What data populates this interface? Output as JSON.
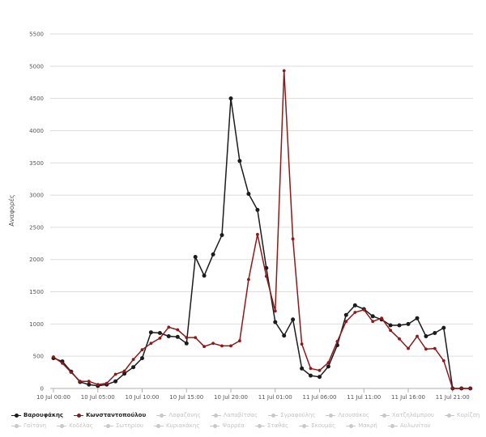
{
  "chart_data": {
    "type": "line",
    "ylabel": "Αναφορές",
    "y_ticks": [
      "0",
      "500",
      "1000",
      "1500",
      "2000",
      "2500",
      "3000",
      "3500",
      "4000",
      "4500",
      "5000",
      "5500"
    ],
    "ylim": [
      0,
      5500
    ],
    "x_ticks": [
      "10 Jul 00:00",
      "10 Jul 05:00",
      "10 Jul 10:00",
      "10 Jul 15:00",
      "10 Jul 20:00",
      "11 Jul 01:00",
      "11 Jul 06:00",
      "11 Jul 11:00",
      "11 Jul 16:00",
      "11 Jul 21:00"
    ],
    "x_hours_from_10_Jul_00_00": [
      0,
      5,
      10,
      15,
      20,
      25,
      30,
      35,
      40,
      45
    ],
    "xlim_hours": [
      0,
      49
    ],
    "gridlines": "horizontal",
    "legend_position": "bottom",
    "series": [
      {
        "name": "Βαρουφάκης",
        "color": "#1c1c1c",
        "visible": true,
        "values": [
          470,
          420,
          260,
          100,
          60,
          40,
          60,
          110,
          230,
          330,
          470,
          870,
          860,
          810,
          800,
          700,
          2040,
          1750,
          2080,
          2380,
          4500,
          3530,
          3020,
          2770,
          1870,
          1030,
          820,
          1070,
          310,
          200,
          180,
          340,
          670,
          1140,
          1290,
          1230,
          1120,
          1070,
          980,
          980,
          1000,
          1090,
          810,
          860,
          940,
          0,
          0,
          0
        ]
      },
      {
        "name": "Κωνσταντοπούλου",
        "color": "#8b1a1a",
        "visible": true,
        "values": [
          490,
          390,
          250,
          110,
          110,
          60,
          80,
          220,
          270,
          450,
          600,
          700,
          780,
          950,
          910,
          790,
          790,
          650,
          700,
          660,
          660,
          740,
          1690,
          2390,
          1740,
          1200,
          4930,
          2320,
          690,
          310,
          280,
          400,
          730,
          1040,
          1180,
          1220,
          1040,
          1090,
          900,
          770,
          620,
          810,
          610,
          620,
          430,
          0,
          0,
          0
        ]
      }
    ],
    "hidden_series": [
      "Λαφαζάνης",
      "Λαπαβίτσας",
      "Σγραφούλης",
      "Λεουσάκος",
      "Χατζηλάμπρου",
      "Κορίζση",
      "Γαϊτάνη",
      "Κοδέλας",
      "Σωτηρίου",
      "Κυριακάκης",
      "Ψαρρέα",
      "Σταθάς",
      "Σκουμάς",
      "Μακρή",
      "Αυλωνίτου"
    ]
  },
  "legend_hidden_color": "#c8c8c8",
  "grid_color": "#dddddd"
}
